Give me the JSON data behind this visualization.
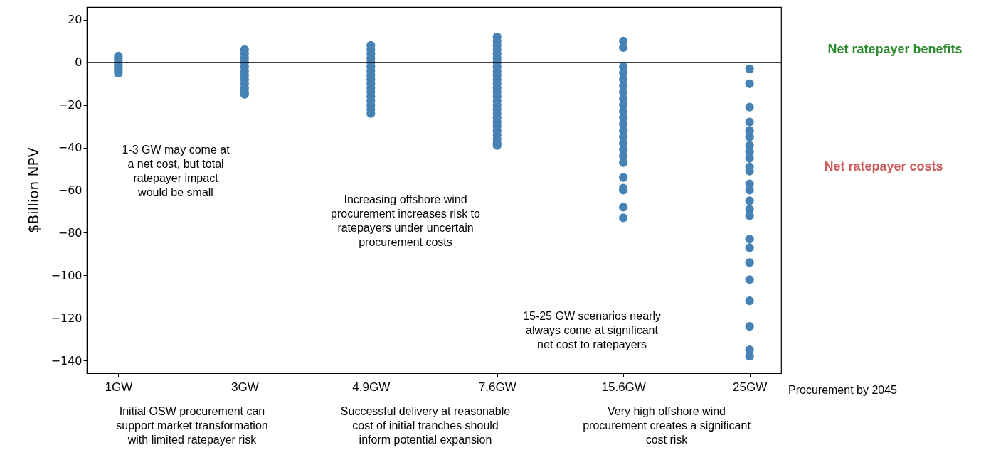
{
  "chart_data": {
    "type": "scatter",
    "categories": [
      "1GW",
      "3GW",
      "4.9GW",
      "7.6GW",
      "15.6GW",
      "25GW"
    ],
    "ylabel": "$Billion NPV",
    "xlabel": "Procurement by 2045",
    "ylim": [
      -146,
      26
    ],
    "yticks": [
      20,
      0,
      -20,
      -40,
      -60,
      -80,
      -100,
      -120,
      -140
    ],
    "grid": false,
    "marker": "circle",
    "ref_lines": [
      {
        "axis": "y",
        "value": 0,
        "color": "#000000"
      }
    ],
    "series": [
      {
        "color": "#4682b4",
        "x": [
          "1GW",
          "1GW",
          "1GW",
          "1GW",
          "1GW",
          "1GW",
          "1GW",
          "1GW",
          "1GW",
          "3GW",
          "3GW",
          "3GW",
          "3GW",
          "3GW",
          "3GW",
          "3GW",
          "3GW",
          "3GW",
          "3GW",
          "3GW",
          "3GW",
          "4.9GW",
          "4.9GW",
          "4.9GW",
          "4.9GW",
          "4.9GW",
          "4.9GW",
          "4.9GW",
          "4.9GW",
          "4.9GW",
          "4.9GW",
          "4.9GW",
          "4.9GW",
          "4.9GW",
          "4.9GW",
          "4.9GW",
          "4.9GW",
          "4.9GW",
          "7.6GW",
          "7.6GW",
          "7.6GW",
          "7.6GW",
          "7.6GW",
          "7.6GW",
          "7.6GW",
          "7.6GW",
          "7.6GW",
          "7.6GW",
          "7.6GW",
          "7.6GW",
          "7.6GW",
          "7.6GW",
          "7.6GW",
          "7.6GW",
          "7.6GW",
          "7.6GW",
          "7.6GW",
          "7.6GW",
          "7.6GW",
          "7.6GW",
          "7.6GW",
          "7.6GW",
          "7.6GW",
          "7.6GW",
          "7.6GW",
          "15.6GW",
          "15.6GW",
          "15.6GW",
          "15.6GW",
          "15.6GW",
          "15.6GW",
          "15.6GW",
          "15.6GW",
          "15.6GW",
          "15.6GW",
          "15.6GW",
          "15.6GW",
          "15.6GW",
          "15.6GW",
          "15.6GW",
          "15.6GW",
          "15.6GW",
          "15.6GW",
          "15.6GW",
          "15.6GW",
          "15.6GW",
          "15.6GW",
          "15.6GW",
          "25GW",
          "25GW",
          "25GW",
          "25GW",
          "25GW",
          "25GW",
          "25GW",
          "25GW",
          "25GW",
          "25GW",
          "25GW",
          "25GW",
          "25GW",
          "25GW",
          "25GW",
          "25GW",
          "25GW",
          "25GW",
          "25GW",
          "25GW",
          "25GW",
          "25GW",
          "25GW",
          "25GW"
        ],
        "values": [
          3,
          2,
          1,
          0,
          -1,
          -2,
          -3,
          -4,
          -5,
          6,
          4,
          2,
          0,
          -2,
          -4,
          -6,
          -8,
          -10,
          -12,
          -14,
          -15,
          8,
          6,
          4,
          2,
          0,
          -2,
          -4,
          -6,
          -8,
          -10,
          -12,
          -14,
          -16,
          -18,
          -20,
          -22,
          -24,
          12,
          10,
          8,
          6,
          4,
          2,
          0,
          -2,
          -4,
          -6,
          -8,
          -10,
          -12,
          -14,
          -16,
          -18,
          -20,
          -22,
          -24,
          -26,
          -28,
          -30,
          -32,
          -34,
          -36,
          -38,
          -39,
          10,
          7,
          -2,
          -5,
          -8,
          -11,
          -14,
          -17,
          -20,
          -23,
          -26,
          -29,
          -32,
          -35,
          -38,
          -41,
          -44,
          -47,
          -54,
          -59,
          -60,
          -68,
          -73,
          -3,
          -10,
          -21,
          -28,
          -32,
          -35,
          -39,
          -42,
          -45,
          -49,
          -51,
          -57,
          -60,
          -65,
          -69,
          -72,
          -83,
          -87,
          -94,
          -102,
          -112,
          -124,
          -135,
          -138
        ]
      }
    ],
    "annotations": [
      "1-3 GW may come at\na net cost, but total\nratepayer impact\nwould be small",
      "Increasing offshore wind\nprocurement increases risk to\nratepayers under uncertain\nprocurement costs",
      "15-25 GW scenarios nearly\nalways come at significant\nnet cost to ratepayers",
      "Net ratepayer benefits",
      "Net ratepayer costs",
      "Initial OSW procurement can\nsupport market transformation\nwith limited ratepayer risk",
      "Successful delivery at reasonable\ncost of initial tranches should\ninform potential expansion",
      "Very high offshore wind\nprocurement creates a significant\ncost risk"
    ]
  }
}
